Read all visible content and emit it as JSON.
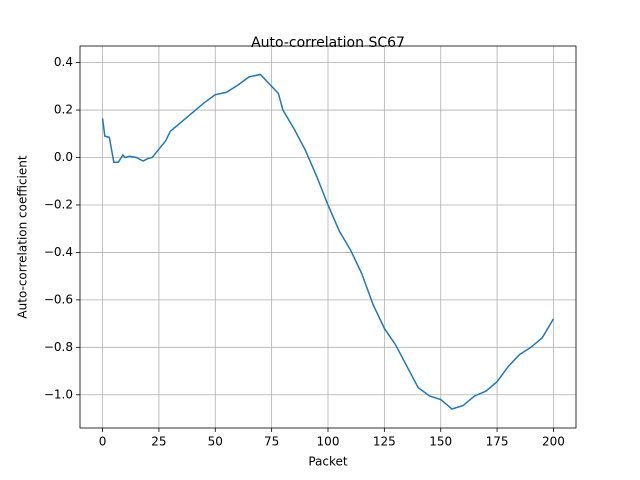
{
  "chart_data": {
    "type": "line",
    "title": "Auto-correlation SC67",
    "x_label": "Packet",
    "y_label": "Auto-correlation coefficient",
    "x": [
      0,
      1,
      3,
      5,
      7,
      9,
      10,
      12,
      15,
      17,
      18,
      20,
      22,
      25,
      28,
      30,
      35,
      40,
      45,
      50,
      55,
      60,
      65,
      70,
      75,
      78,
      80,
      85,
      90,
      95,
      100,
      105,
      110,
      115,
      120,
      125,
      130,
      135,
      140,
      145,
      150,
      155,
      160,
      165,
      170,
      175,
      180,
      185,
      190,
      195,
      200
    ],
    "series": [
      {
        "color": "#1f77b4",
        "values": [
          0.165,
          0.09,
          0.085,
          -0.02,
          -0.02,
          0.01,
          0.0,
          0.005,
          0.0,
          -0.01,
          -0.015,
          -0.005,
          0.0,
          0.035,
          0.07,
          0.11,
          0.15,
          0.19,
          0.23,
          0.265,
          0.275,
          0.305,
          0.34,
          0.35,
          0.3,
          0.27,
          0.2,
          0.12,
          0.03,
          -0.08,
          -0.2,
          -0.31,
          -0.39,
          -0.49,
          -0.62,
          -0.72,
          -0.79,
          -0.88,
          -0.97,
          -1.005,
          -1.02,
          -1.06,
          -1.045,
          -1.005,
          -0.985,
          -0.945,
          -0.88,
          -0.83,
          -0.8,
          -0.76,
          -0.68
        ]
      }
    ],
    "xlim": [
      -10,
      210
    ],
    "ylim": [
      -1.14,
      0.47
    ],
    "xticks": [
      0,
      25,
      50,
      75,
      100,
      125,
      150,
      175,
      200
    ],
    "yticks": [
      {
        "value": -1.0,
        "label": "−1.0"
      },
      {
        "value": -0.8,
        "label": "−0.8"
      },
      {
        "value": -0.6,
        "label": "−0.6"
      },
      {
        "value": -0.4,
        "label": "−0.4"
      },
      {
        "value": -0.2,
        "label": "−0.2"
      },
      {
        "value": 0,
        "label": "0.0"
      },
      0.2,
      0.4
    ],
    "grid": true
  }
}
